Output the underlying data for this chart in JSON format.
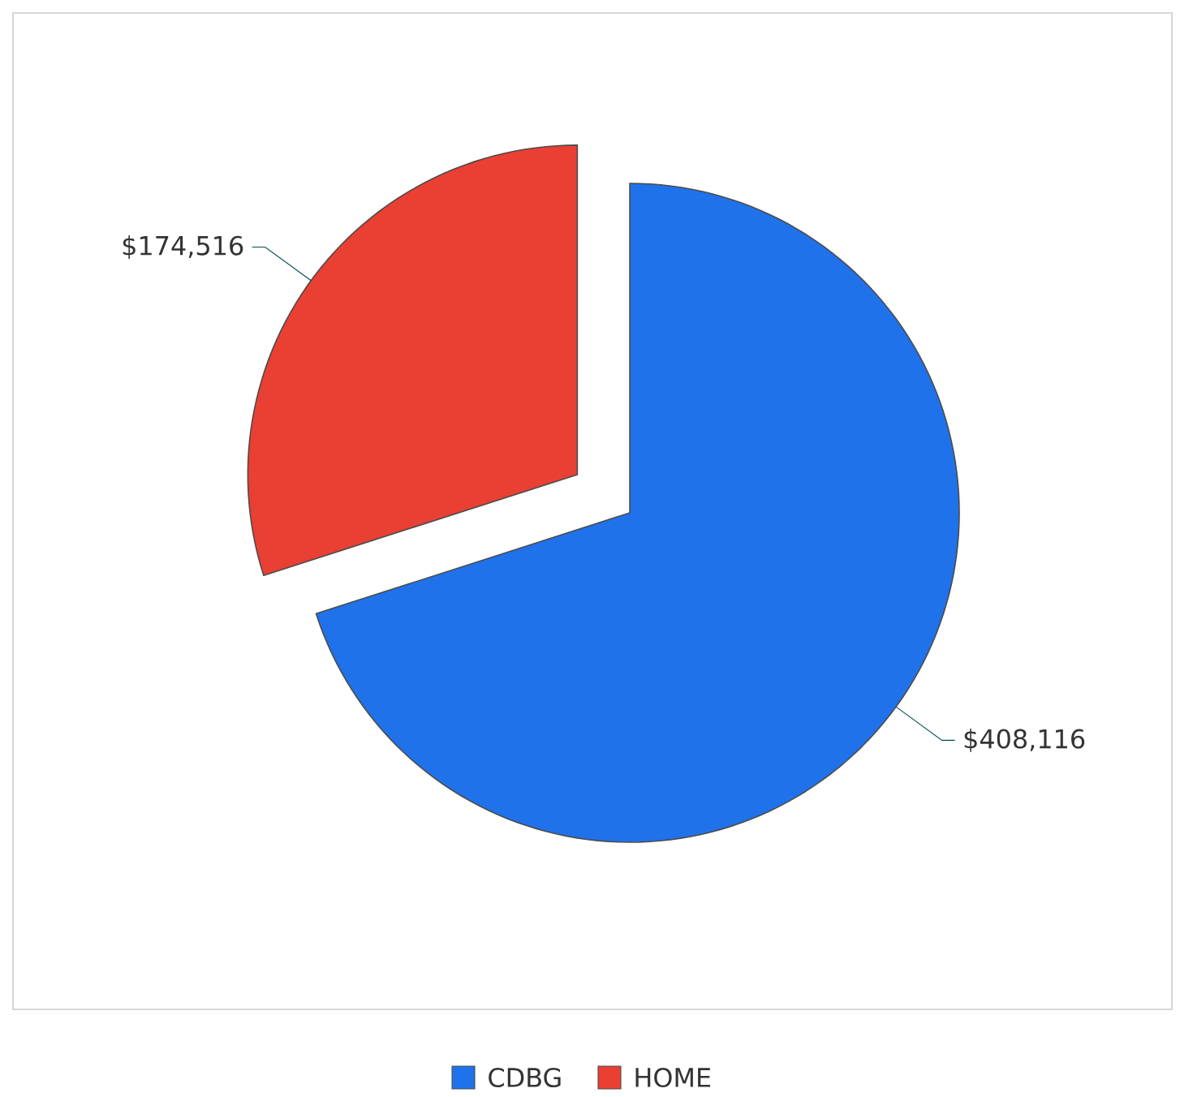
{
  "chart_data": {
    "type": "pie",
    "categories": [
      "CDBG",
      "HOME"
    ],
    "values": [
      408116,
      174516
    ],
    "colors": [
      "#1f72ea",
      "#ea3f33"
    ],
    "value_labels": [
      "$408,116",
      "$174,516"
    ],
    "legend": "bottom"
  }
}
